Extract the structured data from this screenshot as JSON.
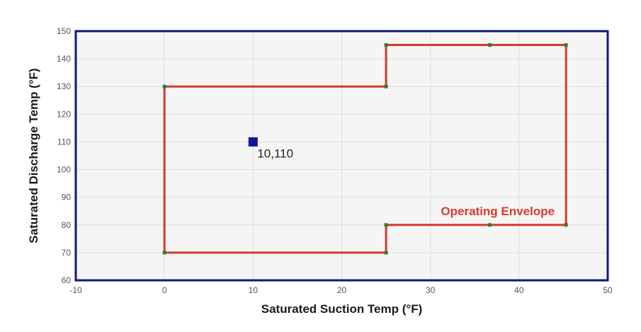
{
  "chart_data": {
    "type": "scatter",
    "title": "",
    "xlabel": "Saturated Suction Temp (°F)",
    "ylabel": "Saturated Discharge Temp (°F)",
    "xlim": [
      -10,
      50
    ],
    "ylim": [
      60,
      150
    ],
    "x_ticks": [
      -10,
      0,
      10,
      20,
      30,
      40,
      50
    ],
    "y_ticks": [
      60,
      70,
      80,
      90,
      100,
      110,
      120,
      130,
      140,
      150
    ],
    "grid": true,
    "envelope": {
      "name": "Operating Envelope",
      "points": [
        [
          0,
          70
        ],
        [
          25,
          70
        ],
        [
          25,
          80
        ],
        [
          36.7,
          80
        ],
        [
          45.3,
          80
        ],
        [
          45.3,
          145
        ],
        [
          36.7,
          145
        ],
        [
          25,
          145
        ],
        [
          25,
          130
        ],
        [
          0,
          130
        ]
      ]
    },
    "points": [
      {
        "x": 10,
        "y": 110,
        "label": "10,110"
      }
    ],
    "colors": {
      "envelope": "#d63a2a",
      "vertex": "#2e7d32",
      "point": "#0a1a9a",
      "frame": "#10177a",
      "plot_background": "#f5f5f5",
      "grid": "#dddddd"
    }
  }
}
